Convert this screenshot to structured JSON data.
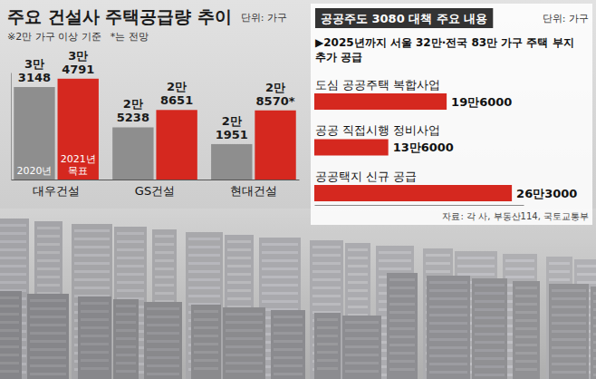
{
  "chart_data": [
    {
      "type": "bar",
      "title": "주요 건설사 주택공급량 추이",
      "annotations": [
        "단위: 가구",
        "※2만 가구 이상 기준",
        "*는 전망"
      ],
      "categories": [
        "대우건설",
        "GS건설",
        "현대건설"
      ],
      "series": [
        {
          "name": "2020년",
          "color": "#8e8e8e",
          "values": [
            33148,
            25238,
            21951
          ],
          "value_labels": [
            "3만 3148",
            "2만 5238",
            "2만 1951"
          ]
        },
        {
          "name": "2021년 목표",
          "color": "#d5281f",
          "values": [
            34791,
            28651,
            28570
          ],
          "value_labels": [
            "3만 4791",
            "2만 8651",
            "2만 8570*"
          ]
        }
      ],
      "ylim": [
        15000,
        36000
      ],
      "data_labels": true,
      "tick_labels": "x"
    },
    {
      "type": "bar",
      "orientation": "horizontal",
      "title": "공공주도 3080 대책 주요 내용",
      "subtitle": "▶2025년까지 서울 32만·전국 83만 가구 주택 부지 추가 공급",
      "annotations": [
        "단위: 가구"
      ],
      "source": "자료: 각 사, 부동산114, 국토교통부",
      "categories": [
        "도심 공공주택 복합사업",
        "공공 직접시행 정비사업",
        "공공택지 신규 공급"
      ],
      "values": [
        196000,
        136000,
        263000
      ],
      "value_labels": [
        "19만6000",
        "13만6000",
        "26만3000"
      ],
      "color": "#d5281f",
      "xlim": [
        60000,
        275000
      ],
      "data_labels": true,
      "tick_labels": "y"
    }
  ]
}
